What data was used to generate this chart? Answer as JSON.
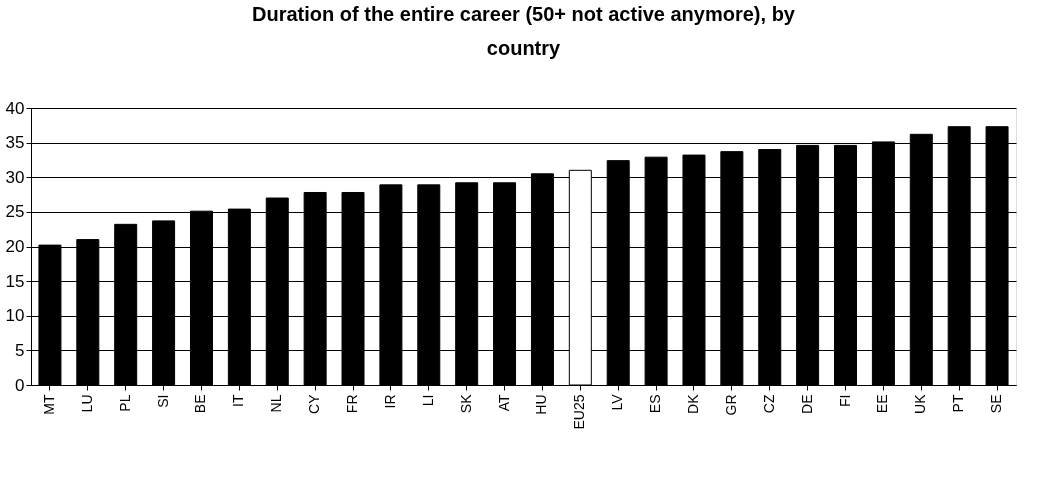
{
  "chart_data": {
    "type": "bar",
    "title": "Duration of the entire career (50+ not active anymore), by country",
    "categories": [
      "MT",
      "LU",
      "PL",
      "SI",
      "BE",
      "IT",
      "NL",
      "CY",
      "FR",
      "IR",
      "LI",
      "SK",
      "AT",
      "HU",
      "EU25",
      "LV",
      "ES",
      "DK",
      "GR",
      "CZ",
      "DE",
      "FI",
      "EE",
      "UK",
      "PT",
      "SE"
    ],
    "values": [
      20.2,
      21,
      23.2,
      23.7,
      25.1,
      25.4,
      27,
      27.8,
      27.8,
      28.9,
      28.9,
      29.2,
      29.2,
      30.5,
      31,
      32.4,
      32.9,
      33.2,
      33.7,
      34,
      34.6,
      34.6,
      35.1,
      36.2,
      37.3,
      37.3
    ],
    "colors": [
      "#000000",
      "#000000",
      "#000000",
      "#000000",
      "#000000",
      "#000000",
      "#000000",
      "#000000",
      "#000000",
      "#000000",
      "#000000",
      "#000000",
      "#000000",
      "#000000",
      "#ffffff",
      "#000000",
      "#000000",
      "#000000",
      "#000000",
      "#000000",
      "#000000",
      "#000000",
      "#000000",
      "#000000",
      "#000000",
      "#000000"
    ],
    "ylim": [
      0,
      40
    ],
    "yticks": [
      0,
      5,
      10,
      15,
      20,
      25,
      30,
      35,
      40
    ],
    "grid": "y",
    "legend": false
  }
}
